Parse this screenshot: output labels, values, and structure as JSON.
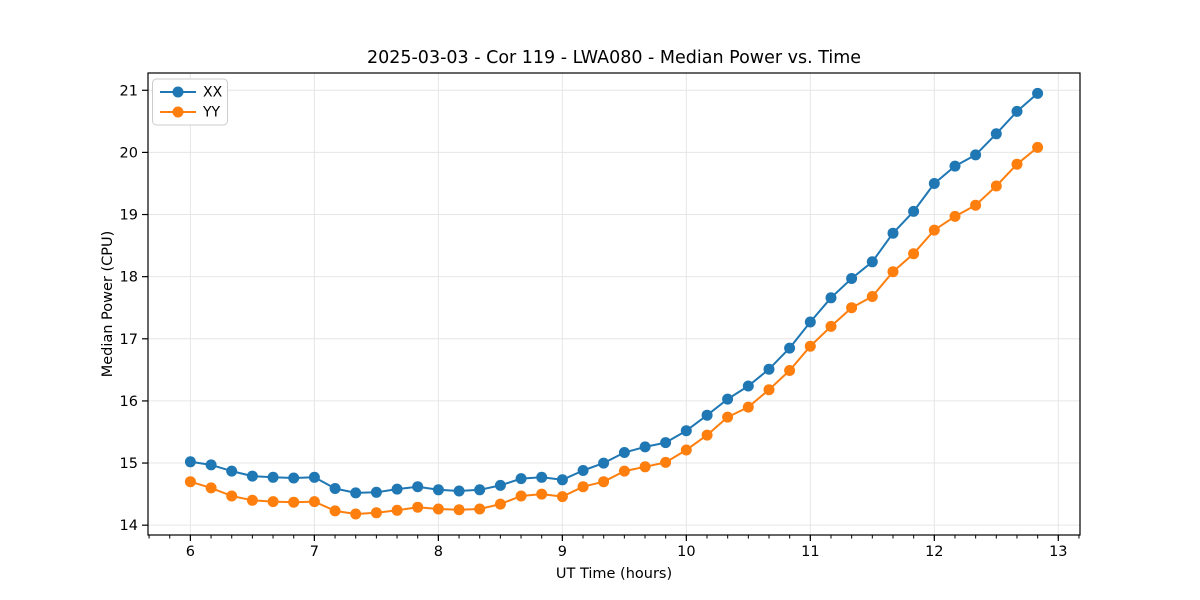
{
  "figure": {
    "background": "#ffffff",
    "grid_color": "#e6e6e6",
    "spine_color": "#000000",
    "legend_border_color": "#cccccc"
  },
  "chart_data": {
    "type": "line",
    "title": "2025-03-03 - Cor 119 - LWA080 - Median Power vs. Time",
    "xlabel": "UT Time (hours)",
    "ylabel": "Median Power (CPU)",
    "xlim": [
      5.658,
      13.175
    ],
    "ylim": [
      13.842,
      21.278
    ],
    "grid": true,
    "legend_position": "upper-left",
    "x_ticks": [
      6,
      7,
      8,
      9,
      10,
      11,
      12,
      13
    ],
    "x_tick_labels": [
      "6",
      "7",
      "8",
      "9",
      "10",
      "11",
      "12",
      "13"
    ],
    "x_minor_step": 0.1666667,
    "y_ticks": [
      14,
      15,
      16,
      17,
      18,
      19,
      20,
      21
    ],
    "y_tick_labels": [
      "14",
      "15",
      "16",
      "17",
      "18",
      "19",
      "20",
      "21"
    ],
    "x": [
      6.0,
      6.167,
      6.333,
      6.5,
      6.667,
      6.833,
      7.0,
      7.167,
      7.333,
      7.5,
      7.667,
      7.833,
      8.0,
      8.167,
      8.333,
      8.5,
      8.667,
      8.833,
      9.0,
      9.167,
      9.333,
      9.5,
      9.667,
      9.833,
      10.0,
      10.167,
      10.333,
      10.5,
      10.667,
      10.833,
      11.0,
      11.167,
      11.333,
      11.5,
      11.667,
      11.833,
      12.0,
      12.167,
      12.333,
      12.5,
      12.667,
      12.833
    ],
    "series": [
      {
        "name": "XX",
        "color": "#1f77b4",
        "marker": "circle",
        "values": [
          15.02,
          14.97,
          14.87,
          14.79,
          14.77,
          14.76,
          14.77,
          14.59,
          14.52,
          14.53,
          14.58,
          14.62,
          14.57,
          14.55,
          14.57,
          14.64,
          14.75,
          14.77,
          14.73,
          14.88,
          15.0,
          15.17,
          15.26,
          15.33,
          15.52,
          15.77,
          16.03,
          16.24,
          16.51,
          16.85,
          17.27,
          17.66,
          17.97,
          18.24,
          18.7,
          19.05,
          19.5,
          19.78,
          19.96,
          20.3,
          20.66,
          20.95
        ]
      },
      {
        "name": "YY",
        "color": "#ff7f0e",
        "marker": "circle",
        "values": [
          14.7,
          14.6,
          14.47,
          14.4,
          14.38,
          14.37,
          14.38,
          14.23,
          14.18,
          14.2,
          14.24,
          14.29,
          14.26,
          14.25,
          14.26,
          14.34,
          14.47,
          14.5,
          14.46,
          14.62,
          14.7,
          14.87,
          14.94,
          15.01,
          15.21,
          15.45,
          15.74,
          15.9,
          16.18,
          16.49,
          16.88,
          17.2,
          17.5,
          17.68,
          18.08,
          18.37,
          18.75,
          18.97,
          19.15,
          19.46,
          19.81,
          20.08
        ]
      }
    ]
  }
}
